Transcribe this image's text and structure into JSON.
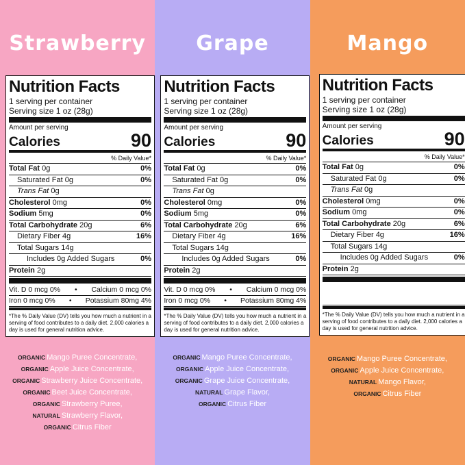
{
  "panels": [
    {
      "flavor": "Strawberry",
      "facts": {
        "title": "Nutrition Facts",
        "servings": "1 serving per container",
        "serving_size": "Serving size 1 oz (28g)",
        "amount_per_serving": "Amount per serving",
        "calories_label": "Calories",
        "calories": "90",
        "dv_header": "% Daily Value*",
        "rows": [
          {
            "label": "Total Fat",
            "amount": "0g",
            "dv": "0%",
            "children": [
              {
                "label": "Saturated Fat",
                "amount": "0g",
                "dv": "0%"
              },
              {
                "label": "Trans Fat",
                "amount": "0g"
              }
            ]
          },
          {
            "label": "Cholesterol",
            "amount": "0mg",
            "dv": "0%"
          },
          {
            "label": "Sodium",
            "amount": "5mg",
            "dv": "0%"
          },
          {
            "label": "Total Carbohydrate",
            "amount": "20g",
            "dv": "6%",
            "children": [
              {
                "label": "Dietary Fiber",
                "amount": "4g",
                "dv": "16%"
              },
              {
                "label": "Total Sugars",
                "amount": "14g",
                "children": [
                  {
                    "label": "Includes 0g Added Sugars",
                    "dv": "0%"
                  }
                ]
              }
            ]
          },
          {
            "label": "Protein",
            "amount": "2g"
          }
        ],
        "vitamins": [
          [
            "Vit. D 0 mcg 0%",
            "Calcium 0 mcg 0%"
          ],
          [
            "Iron 0 mcg 0%",
            "Potassium 80mg 4%"
          ]
        ],
        "footnote": "*The % Daily Value (DV) tells you how much a nutrient in a serving of food contributes to a daily diet. 2,000 calories a day is used for general nutrition advice."
      },
      "ingredients": [
        {
          "qualifier": "ORGANIC",
          "text": "Mango Puree Concentrate,"
        },
        {
          "qualifier": "ORGANIC",
          "text": "Apple Juice Concentrate,"
        },
        {
          "qualifier": "ORGANIC",
          "text": "Strawberry Juice Concentrate,"
        },
        {
          "qualifier": "ORGANIC",
          "text": "Beet Juice Concentrate,"
        },
        {
          "qualifier": "ORGANIC",
          "text": "Strawberry Puree,"
        },
        {
          "qualifier": "NATURAL",
          "text": "Strawberry Flavor,"
        },
        {
          "qualifier": "ORGANIC",
          "text": "Citrus Fiber"
        }
      ]
    },
    {
      "flavor": "Grape",
      "facts": {
        "title": "Nutrition Facts",
        "servings": "1 serving per container",
        "serving_size": "Serving size 1 oz (28g)",
        "amount_per_serving": "Amount per serving",
        "calories_label": "Calories",
        "calories": "90",
        "dv_header": "% Daily Value*",
        "rows": [
          {
            "label": "Total Fat",
            "amount": "0g",
            "dv": "0%",
            "children": [
              {
                "label": "Saturated Fat",
                "amount": "0g",
                "dv": "0%"
              },
              {
                "label": "Trans Fat",
                "amount": "0g"
              }
            ]
          },
          {
            "label": "Cholesterol",
            "amount": "0mg",
            "dv": "0%"
          },
          {
            "label": "Sodium",
            "amount": "5mg",
            "dv": "0%"
          },
          {
            "label": "Total Carbohydrate",
            "amount": "20g",
            "dv": "6%",
            "children": [
              {
                "label": "Dietary Fiber",
                "amount": "4g",
                "dv": "16%"
              },
              {
                "label": "Total Sugars",
                "amount": "14g",
                "children": [
                  {
                    "label": "Includes 0g Added Sugars",
                    "dv": "0%"
                  }
                ]
              }
            ]
          },
          {
            "label": "Protein",
            "amount": "2g"
          }
        ],
        "vitamins": [
          [
            "Vit. D 0 mcg 0%",
            "Calcium 0 mcg 0%"
          ],
          [
            "Iron 0 mcg 0%",
            "Potassium 80mg 4%"
          ]
        ],
        "footnote": "*The % Daily Value (DV) tells you how much a nutrient in a serving of food contributes to a daily diet. 2,000 calories a day is used for general nutrition advice."
      },
      "ingredients": [
        {
          "qualifier": "ORGANIC",
          "text": "Mango Puree Concentrate,"
        },
        {
          "qualifier": "ORGANIC",
          "text": "Apple Juice Concentrate,"
        },
        {
          "qualifier": "ORGANIC",
          "text": "Grape Juice Concentrate,"
        },
        {
          "qualifier": "NATURAL",
          "text": "Grape Flavor,"
        },
        {
          "qualifier": "ORGANIC",
          "text": "Citrus Fiber"
        }
      ]
    },
    {
      "flavor": "Mango",
      "facts": {
        "title": "Nutrition Facts",
        "servings": "1 serving per container",
        "serving_size": "Serving size 1 oz (28g)",
        "amount_per_serving": "Amount per serving",
        "calories_label": "Calories",
        "calories": "90",
        "dv_header": "% Daily Value*",
        "rows": [
          {
            "label": "Total Fat",
            "amount": "0g",
            "dv": "0%",
            "children": [
              {
                "label": "Saturated Fat",
                "amount": "0g",
                "dv": "0%"
              },
              {
                "label": "Trans Fat",
                "amount": "0g"
              }
            ]
          },
          {
            "label": "Cholesterol",
            "amount": "0mg",
            "dv": "0%"
          },
          {
            "label": "Sodium",
            "amount": "0mg",
            "dv": "0%"
          },
          {
            "label": "Total Carbohydrate",
            "amount": "20g",
            "dv": "6%",
            "children": [
              {
                "label": "Dietary Fiber",
                "amount": "4g",
                "dv": "16%"
              },
              {
                "label": "Total Sugars",
                "amount": "14g",
                "children": [
                  {
                    "label": "Includes 0g Added Sugars",
                    "dv": "0%"
                  }
                ]
              }
            ]
          },
          {
            "label": "Protein",
            "amount": "2g"
          }
        ],
        "footnote": "*The % Daily Value (DV) tells you how much a nutrient in a serving of food contributes to a daily diet. 2,000 calories a day is used for general nutrition advice."
      },
      "ingredients": [
        {
          "qualifier": "ORGANIC",
          "text": "Mango Puree Concentrate,"
        },
        {
          "qualifier": "ORGANIC",
          "text": "Apple Juice Concentrate,"
        },
        {
          "qualifier": "NATURAL",
          "text": "Mango Flavor,"
        },
        {
          "qualifier": "ORGANIC",
          "text": "Citrus Fiber"
        }
      ]
    }
  ]
}
